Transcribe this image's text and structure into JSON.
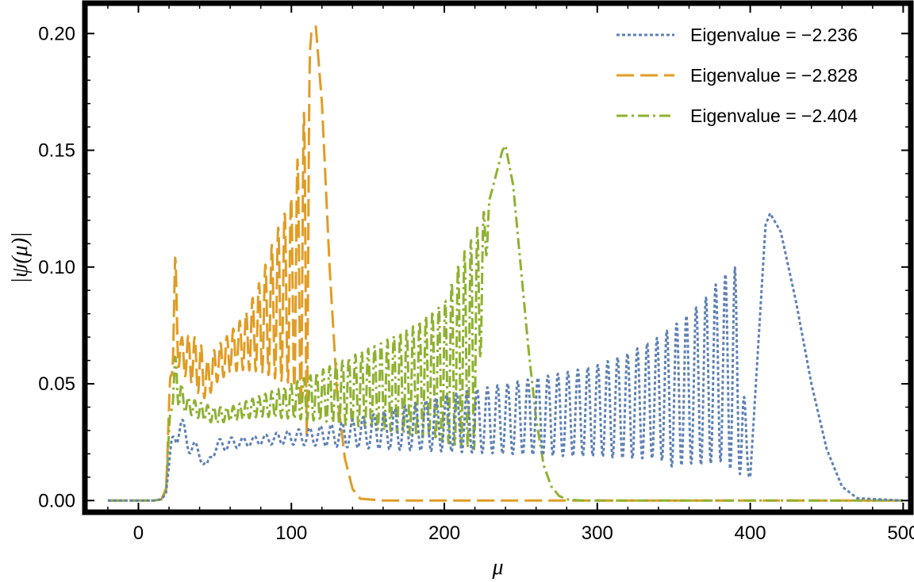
{
  "chart_data": {
    "type": "line",
    "title": "",
    "xlabel": "μ",
    "ylabel": "|ψ(μ)|",
    "xlim": [
      -35,
      505
    ],
    "ylim": [
      -0.005,
      0.213
    ],
    "x_ticks": [
      "0",
      "100",
      "200",
      "300",
      "400",
      "500"
    ],
    "y_ticks": [
      "0.00",
      "0.05",
      "0.10",
      "0.15",
      "0.20"
    ],
    "legend_position": "top-right",
    "grid": false,
    "series": [
      {
        "name": "Eigenvalue = −2.236",
        "color": "#5e81b5",
        "dash": "dotted",
        "x": [
          -20,
          10,
          15,
          18,
          20,
          22,
          24,
          30,
          40,
          45,
          50,
          60,
          70,
          80,
          100,
          130,
          160,
          200,
          240,
          280,
          300,
          320,
          340,
          350,
          360,
          370,
          380,
          390,
          400,
          410,
          413,
          420,
          430,
          440,
          450,
          460,
          470,
          500
        ],
        "y": [
          0,
          0,
          0.0005,
          0.003,
          0.015,
          0.03,
          0.042,
          0.033,
          0.022,
          0.016,
          0.026,
          0.027,
          0.027,
          0.028,
          0.03,
          0.033,
          0.038,
          0.045,
          0.05,
          0.055,
          0.058,
          0.063,
          0.07,
          0.075,
          0.08,
          0.086,
          0.095,
          0.1,
          0.01,
          0.118,
          0.123,
          0.115,
          0.085,
          0.05,
          0.022,
          0.006,
          0.001,
          0
        ],
        "envelope_low": [
          0,
          0,
          0.0005,
          0.003,
          0.015,
          0.02,
          0.025,
          0.022,
          0.017,
          0.013,
          0.02,
          0.022,
          0.023,
          0.024,
          0.024,
          0.023,
          0.022,
          0.021,
          0.02,
          0.019,
          0.019,
          0.018,
          0.018,
          0.014,
          0.016,
          0.015,
          0.017,
          0.012,
          0.01,
          0.118,
          0.123,
          0.115,
          0.085,
          0.05,
          0.022,
          0.006,
          0.001,
          0
        ]
      },
      {
        "name": "Eigenvalue = −2.828",
        "color": "#e19c24",
        "dash": "long-dash",
        "x": [
          -20,
          10,
          15,
          18,
          20,
          22,
          24,
          28,
          35,
          40,
          45,
          50,
          60,
          70,
          80,
          90,
          100,
          105,
          110,
          113,
          116,
          120,
          125,
          130,
          135,
          140,
          145,
          160,
          200,
          300,
          400,
          500
        ],
        "y": [
          0,
          0,
          0.0005,
          0.005,
          0.04,
          0.085,
          0.105,
          0.07,
          0.071,
          0.068,
          0.06,
          0.065,
          0.072,
          0.08,
          0.095,
          0.115,
          0.13,
          0.15,
          0.175,
          0.2,
          0.203,
          0.17,
          0.1,
          0.045,
          0.018,
          0.005,
          0.0008,
          0,
          0,
          0,
          0,
          0
        ],
        "envelope_low": [
          0,
          0,
          0.0005,
          0.005,
          0.03,
          0.055,
          0.06,
          0.055,
          0.05,
          0.045,
          0.043,
          0.05,
          0.055,
          0.056,
          0.055,
          0.052,
          0.05,
          0.045,
          0.02,
          0.2,
          0.203,
          0.17,
          0.1,
          0.045,
          0.018,
          0.005,
          0.0008,
          0,
          0,
          0,
          0,
          0
        ]
      },
      {
        "name": "Eigenvalue = −2.404",
        "color": "#8fb131",
        "dash": "dash-dot",
        "x": [
          -20,
          10,
          15,
          18,
          20,
          22,
          24,
          30,
          40,
          50,
          60,
          80,
          100,
          120,
          140,
          160,
          180,
          200,
          210,
          220,
          230,
          238,
          240,
          245,
          250,
          255,
          260,
          265,
          270,
          275,
          280,
          290,
          300,
          350,
          500
        ],
        "y": [
          0,
          0,
          0.0005,
          0.004,
          0.03,
          0.055,
          0.062,
          0.045,
          0.042,
          0.04,
          0.04,
          0.045,
          0.05,
          0.056,
          0.062,
          0.068,
          0.075,
          0.085,
          0.103,
          0.115,
          0.13,
          0.15,
          0.152,
          0.135,
          0.1,
          0.065,
          0.035,
          0.015,
          0.006,
          0.002,
          0.0005,
          0,
          0,
          0,
          0
        ],
        "envelope_low": [
          0,
          0,
          0.0005,
          0.004,
          0.025,
          0.04,
          0.042,
          0.038,
          0.035,
          0.033,
          0.034,
          0.036,
          0.035,
          0.034,
          0.032,
          0.03,
          0.028,
          0.025,
          0.023,
          0.022,
          0.13,
          0.15,
          0.152,
          0.135,
          0.1,
          0.065,
          0.035,
          0.015,
          0.006,
          0.002,
          0.0005,
          0,
          0,
          0,
          0
        ]
      }
    ]
  }
}
